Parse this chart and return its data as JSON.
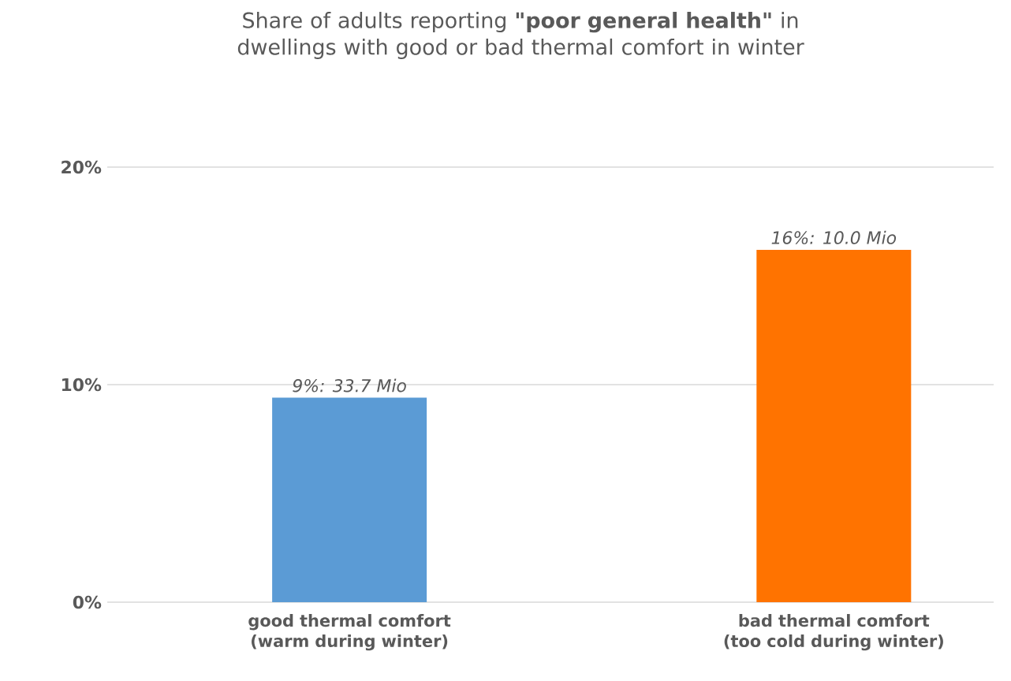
{
  "chart_data": {
    "type": "bar",
    "title": "Share of adults reporting **\"poor general health\"** in dwellings with good or bad thermal comfort in winter",
    "categories": [
      "good thermal comfort (warm during winter)",
      "bad thermal comfort (too cold during winter)"
    ],
    "values": [
      9.4,
      16.2
    ],
    "colors": [
      "#5b9bd5",
      "#ff7300"
    ],
    "value_labels": [
      "9%: 33.7 Mio",
      "16%: 10.0 Mio"
    ],
    "ylim": [
      0,
      20
    ],
    "yticks": [
      {
        "value": 0,
        "label": "0%"
      },
      {
        "value": 10,
        "label": "10%"
      },
      {
        "value": 20,
        "label": "20%"
      }
    ],
    "grid": "y"
  }
}
